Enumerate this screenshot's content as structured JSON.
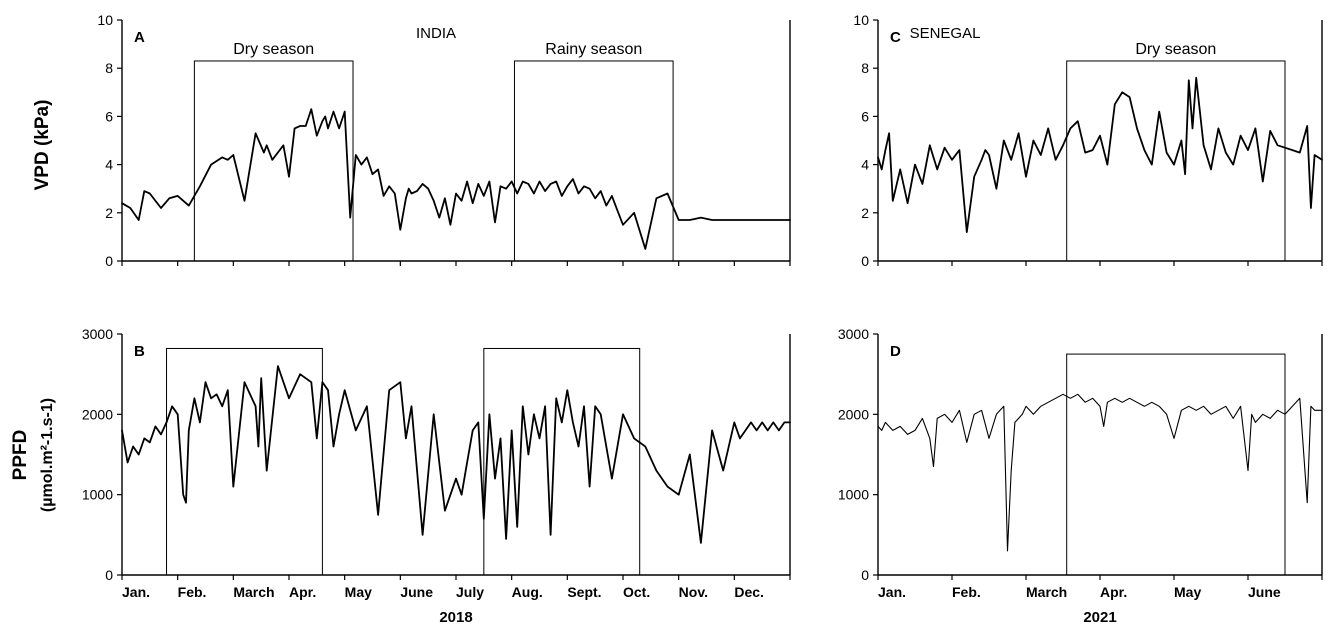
{
  "chart_data": [
    {
      "id": "A",
      "type": "line",
      "panel_label": "A",
      "country": "INDIA",
      "ylabel": "VPD (kPa)",
      "xlabel": "",
      "ylim": [
        0,
        10
      ],
      "yticks": [
        0,
        2,
        4,
        6,
        8,
        10
      ],
      "xlim_months": [
        0,
        12
      ],
      "months": [],
      "grid": false,
      "seasons": [
        {
          "label": "Dry season",
          "start_month": 1.3,
          "end_month": 4.15,
          "top": 8.3
        },
        {
          "label": "Rainy season",
          "start_month": 7.05,
          "end_month": 9.9,
          "top": 8.3
        }
      ],
      "series": [
        {
          "stroke_width": 1.8,
          "x_month": [
            0.0,
            0.15,
            0.3,
            0.4,
            0.5,
            0.7,
            0.85,
            1.0,
            1.2,
            1.4,
            1.6,
            1.8,
            1.9,
            2.0,
            2.2,
            2.4,
            2.55,
            2.6,
            2.7,
            2.9,
            3.0,
            3.1,
            3.2,
            3.3,
            3.4,
            3.5,
            3.6,
            3.65,
            3.7,
            3.8,
            3.9,
            4.0,
            4.1,
            4.2,
            4.3,
            4.4,
            4.5,
            4.6,
            4.7,
            4.8,
            4.9,
            5.0,
            5.1,
            5.15,
            5.2,
            5.3,
            5.4,
            5.5,
            5.6,
            5.7,
            5.8,
            5.9,
            6.0,
            6.1,
            6.2,
            6.3,
            6.4,
            6.5,
            6.6,
            6.7,
            6.8,
            6.9,
            7.0,
            7.1,
            7.2,
            7.3,
            7.4,
            7.5,
            7.6,
            7.7,
            7.8,
            7.9,
            8.0,
            8.1,
            8.2,
            8.3,
            8.4,
            8.5,
            8.6,
            8.7,
            8.8,
            8.9,
            9.0,
            9.2,
            9.4,
            9.6,
            9.8,
            10.0,
            10.2,
            10.4,
            10.6,
            10.8,
            11.0,
            11.1,
            11.2,
            11.3,
            11.4,
            11.5,
            11.6,
            11.7,
            11.8,
            11.9,
            12.0
          ],
          "values": [
            2.4,
            2.2,
            1.7,
            2.9,
            2.8,
            2.2,
            2.6,
            2.7,
            2.3,
            3.1,
            4.0,
            4.3,
            4.2,
            4.4,
            2.5,
            5.3,
            4.5,
            4.8,
            4.2,
            4.8,
            3.5,
            5.5,
            5.6,
            5.6,
            6.3,
            5.2,
            5.8,
            6.0,
            5.5,
            6.2,
            5.5,
            6.2,
            1.8,
            4.4,
            4.0,
            4.3,
            3.6,
            3.8,
            2.7,
            3.1,
            2.8,
            1.3,
            2.6,
            3.0,
            2.8,
            2.9,
            3.2,
            3.0,
            2.5,
            1.8,
            2.6,
            1.5,
            2.8,
            2.5,
            3.3,
            2.4,
            3.2,
            2.7,
            3.3,
            1.6,
            3.1,
            3.0,
            3.3,
            2.8,
            3.3,
            3.2,
            2.8,
            3.3,
            2.9,
            3.2,
            3.3,
            2.7,
            3.1,
            3.4,
            2.8,
            3.1,
            3.0,
            2.6,
            2.9,
            2.3,
            2.7,
            2.1,
            1.5,
            2.0,
            0.5,
            2.6,
            2.8,
            1.7,
            1.7,
            1.8,
            1.7,
            1.7,
            1.7,
            1.7,
            1.7,
            1.7,
            1.7,
            1.7,
            1.7,
            1.7,
            1.7,
            1.7,
            1.7
          ]
        }
      ]
    },
    {
      "id": "B",
      "type": "line",
      "panel_label": "B",
      "country": "",
      "ylabel": "PPFD",
      "ylabel_sub": "(µmol.m²-1.s-1)",
      "xlabel": "2018",
      "ylim": [
        0,
        3000
      ],
      "yticks": [
        0,
        1000,
        2000,
        3000
      ],
      "xlim_months": [
        0,
        12
      ],
      "months": [
        "Jan.",
        "Feb.",
        "March",
        "Apr.",
        "May",
        "June",
        "July",
        "Aug.",
        "Sept.",
        "Oct.",
        "Nov.",
        "Dec."
      ],
      "grid": false,
      "seasons": [
        {
          "label": "",
          "start_month": 0.8,
          "end_month": 3.6,
          "top": 2820
        },
        {
          "label": "",
          "start_month": 6.5,
          "end_month": 9.3,
          "top": 2820
        }
      ],
      "series": [
        {
          "stroke_width": 1.8,
          "x_month": [
            0.0,
            0.1,
            0.2,
            0.3,
            0.4,
            0.5,
            0.6,
            0.7,
            0.8,
            0.9,
            1.0,
            1.1,
            1.15,
            1.2,
            1.3,
            1.4,
            1.5,
            1.6,
            1.7,
            1.8,
            1.9,
            2.0,
            2.2,
            2.4,
            2.45,
            2.5,
            2.6,
            2.8,
            3.0,
            3.2,
            3.4,
            3.5,
            3.6,
            3.7,
            3.8,
            3.9,
            4.0,
            4.2,
            4.4,
            4.6,
            4.8,
            5.0,
            5.1,
            5.2,
            5.4,
            5.6,
            5.8,
            6.0,
            6.1,
            6.2,
            6.3,
            6.4,
            6.5,
            6.6,
            6.7,
            6.8,
            6.9,
            7.0,
            7.1,
            7.2,
            7.3,
            7.4,
            7.5,
            7.6,
            7.7,
            7.8,
            7.9,
            8.0,
            8.1,
            8.2,
            8.3,
            8.4,
            8.5,
            8.6,
            8.8,
            9.0,
            9.2,
            9.4,
            9.6,
            9.8,
            10.0,
            10.2,
            10.4,
            10.6,
            10.8,
            11.0,
            11.1,
            11.2,
            11.3,
            11.4,
            11.5,
            11.6,
            11.7,
            11.8,
            11.9,
            12.0
          ],
          "values": [
            1800,
            1400,
            1600,
            1500,
            1700,
            1650,
            1850,
            1750,
            1900,
            2100,
            2000,
            1000,
            900,
            1800,
            2200,
            1900,
            2400,
            2200,
            2250,
            2100,
            2300,
            1100,
            2400,
            2100,
            1600,
            2450,
            1300,
            2600,
            2200,
            2500,
            2400,
            1700,
            2400,
            2300,
            1600,
            2000,
            2300,
            1800,
            2100,
            750,
            2300,
            2400,
            1700,
            2100,
            500,
            2000,
            800,
            1200,
            1000,
            1400,
            1800,
            1900,
            700,
            2000,
            1200,
            1700,
            450,
            1800,
            600,
            2100,
            1500,
            2000,
            1700,
            2100,
            500,
            2200,
            1900,
            2300,
            1900,
            1600,
            2100,
            1100,
            2100,
            2000,
            1200,
            2000,
            1700,
            1600,
            1300,
            1100,
            1000,
            1500,
            400,
            1800,
            1300,
            1900,
            1700,
            1800,
            1900,
            1800,
            1900,
            1800,
            1900,
            1800,
            1900,
            1900
          ]
        }
      ]
    },
    {
      "id": "C",
      "type": "line",
      "panel_label": "C",
      "country": "SENEGAL",
      "ylabel": "",
      "xlabel": "",
      "ylim": [
        0,
        10
      ],
      "yticks": [
        0,
        2,
        4,
        6,
        8,
        10
      ],
      "xlim_months": [
        0,
        6
      ],
      "months": [],
      "grid": false,
      "seasons": [
        {
          "label": "Dry season",
          "start_month": 2.55,
          "end_month": 5.5,
          "top": 8.3
        }
      ],
      "series": [
        {
          "stroke_width": 1.8,
          "x_month": [
            0.0,
            0.05,
            0.1,
            0.15,
            0.2,
            0.3,
            0.4,
            0.5,
            0.6,
            0.7,
            0.8,
            0.9,
            1.0,
            1.1,
            1.2,
            1.3,
            1.4,
            1.45,
            1.5,
            1.6,
            1.7,
            1.8,
            1.9,
            2.0,
            2.1,
            2.2,
            2.3,
            2.4,
            2.5,
            2.6,
            2.7,
            2.8,
            2.9,
            3.0,
            3.1,
            3.2,
            3.3,
            3.4,
            3.5,
            3.6,
            3.7,
            3.8,
            3.9,
            4.0,
            4.1,
            4.15,
            4.2,
            4.25,
            4.3,
            4.4,
            4.5,
            4.6,
            4.7,
            4.8,
            4.9,
            5.0,
            5.1,
            5.2,
            5.3,
            5.4,
            5.5,
            5.6,
            5.7,
            5.8,
            5.85,
            5.9,
            6.0
          ],
          "values": [
            4.3,
            3.8,
            4.6,
            5.3,
            2.5,
            3.8,
            2.4,
            4.0,
            3.2,
            4.8,
            3.8,
            4.7,
            4.2,
            4.6,
            1.2,
            3.5,
            4.2,
            4.6,
            4.4,
            3.0,
            5.0,
            4.2,
            5.3,
            3.5,
            5.0,
            4.4,
            5.5,
            4.2,
            4.8,
            5.5,
            5.8,
            4.5,
            4.6,
            5.2,
            4.0,
            6.5,
            7.0,
            6.8,
            5.5,
            4.6,
            4.0,
            6.2,
            4.5,
            4.0,
            5.0,
            3.6,
            7.5,
            5.5,
            7.6,
            4.8,
            3.8,
            5.5,
            4.5,
            4.0,
            5.2,
            4.6,
            5.5,
            3.3,
            5.4,
            4.8,
            4.7,
            4.6,
            4.5,
            5.6,
            2.2,
            4.4,
            4.2
          ]
        }
      ]
    },
    {
      "id": "D",
      "type": "line",
      "panel_label": "D",
      "country": "",
      "ylabel": "",
      "xlabel": "2021",
      "ylim": [
        0,
        3000
      ],
      "yticks": [
        0,
        1000,
        2000,
        3000
      ],
      "xlim_months": [
        0,
        6
      ],
      "months": [
        "Jan.",
        "Feb.",
        "March",
        "Apr.",
        "May",
        "June"
      ],
      "grid": false,
      "seasons": [
        {
          "label": "",
          "start_month": 2.55,
          "end_month": 5.5,
          "top": 2750
        }
      ],
      "series": [
        {
          "stroke_width": 1.1,
          "x_month": [
            0.0,
            0.05,
            0.1,
            0.2,
            0.3,
            0.4,
            0.5,
            0.6,
            0.7,
            0.75,
            0.8,
            0.9,
            1.0,
            1.1,
            1.2,
            1.3,
            1.4,
            1.5,
            1.6,
            1.7,
            1.75,
            1.8,
            1.85,
            1.9,
            1.95,
            2.0,
            2.1,
            2.2,
            2.3,
            2.4,
            2.5,
            2.6,
            2.7,
            2.8,
            2.9,
            3.0,
            3.05,
            3.1,
            3.2,
            3.3,
            3.4,
            3.5,
            3.6,
            3.7,
            3.8,
            3.9,
            4.0,
            4.1,
            4.2,
            4.3,
            4.4,
            4.5,
            4.6,
            4.7,
            4.8,
            4.9,
            5.0,
            5.05,
            5.1,
            5.2,
            5.3,
            5.4,
            5.5,
            5.6,
            5.7,
            5.8,
            5.85,
            5.9,
            6.0
          ],
          "values": [
            1850,
            1800,
            1900,
            1800,
            1850,
            1750,
            1800,
            1950,
            1700,
            1350,
            1950,
            2000,
            1900,
            2050,
            1650,
            2000,
            2050,
            1700,
            2000,
            2100,
            300,
            1300,
            1900,
            1950,
            2000,
            2100,
            2000,
            2100,
            2150,
            2200,
            2250,
            2200,
            2250,
            2150,
            2200,
            2100,
            1850,
            2150,
            2200,
            2150,
            2200,
            2150,
            2100,
            2150,
            2100,
            2000,
            1700,
            2050,
            2100,
            2050,
            2100,
            2000,
            2050,
            2100,
            1950,
            2100,
            1300,
            2000,
            1900,
            2000,
            1950,
            2050,
            2000,
            2100,
            2200,
            900,
            2100,
            2050,
            2050
          ]
        }
      ]
    }
  ]
}
